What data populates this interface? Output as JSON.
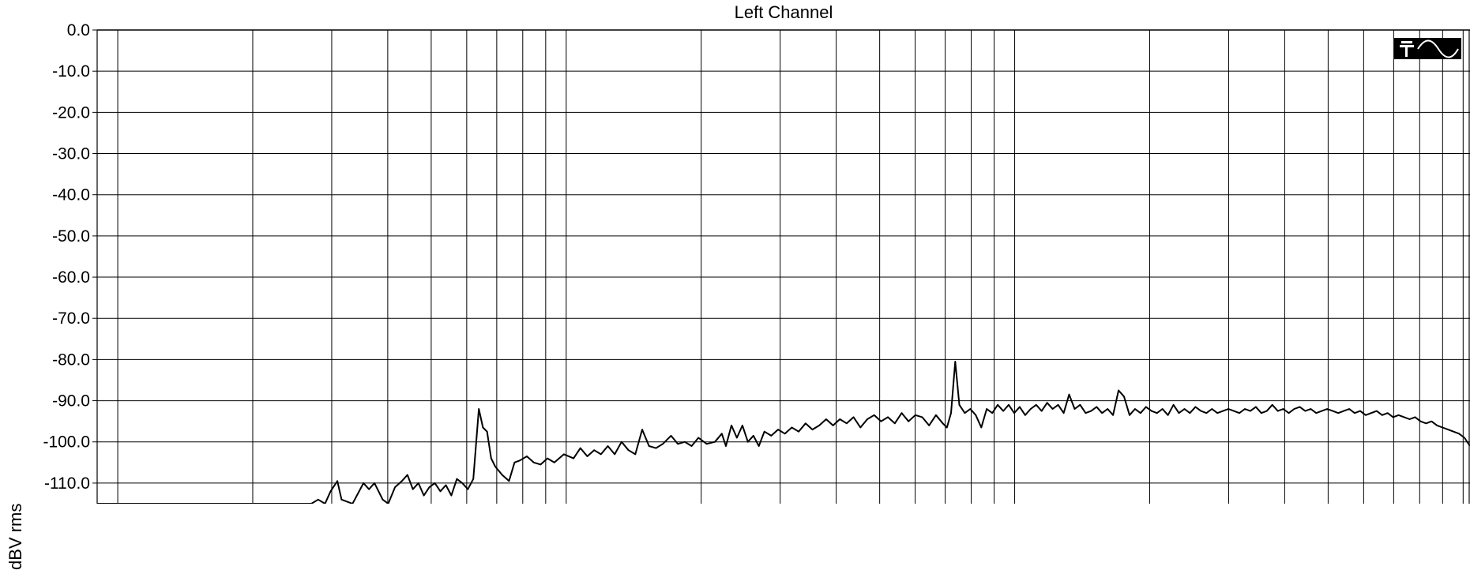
{
  "chart_data": {
    "type": "line",
    "title": "Left Channel",
    "xlabel": "",
    "ylabel": "dBV rms",
    "ylim": [
      -115,
      0
    ],
    "x_scale": "log",
    "grid": true,
    "legend": "none",
    "y_ticks": [
      "0.0",
      "-10.0",
      "-20.0",
      "-30.0",
      "-40.0",
      "-50.0",
      "-60.0",
      "-70.0",
      "-80.0",
      "-90.0",
      "-100.0",
      "-110.0"
    ],
    "series": [
      {
        "color": "#000000",
        "points": [
          [
            0.0,
            -115.0
          ],
          [
            0.04,
            -115.0
          ],
          [
            0.08,
            -115.0
          ],
          [
            0.12,
            -115.0
          ],
          [
            0.156,
            -115.0
          ],
          [
            0.161,
            -114.0
          ],
          [
            0.166,
            -115.0
          ],
          [
            0.17,
            -112.0
          ],
          [
            0.175,
            -109.5
          ],
          [
            0.178,
            -114.0
          ],
          [
            0.186,
            -115.0
          ],
          [
            0.194,
            -110.0
          ],
          [
            0.198,
            -111.5
          ],
          [
            0.202,
            -110.0
          ],
          [
            0.208,
            -114.0
          ],
          [
            0.212,
            -115.0
          ],
          [
            0.217,
            -111.0
          ],
          [
            0.222,
            -109.5
          ],
          [
            0.226,
            -108.0
          ],
          [
            0.23,
            -111.5
          ],
          [
            0.234,
            -110.0
          ],
          [
            0.238,
            -113.0
          ],
          [
            0.242,
            -111.0
          ],
          [
            0.246,
            -110.0
          ],
          [
            0.25,
            -112.0
          ],
          [
            0.254,
            -110.5
          ],
          [
            0.258,
            -113.0
          ],
          [
            0.262,
            -109.0
          ],
          [
            0.266,
            -110.0
          ],
          [
            0.27,
            -111.5
          ],
          [
            0.274,
            -109.0
          ],
          [
            0.278,
            -92.0
          ],
          [
            0.281,
            -96.5
          ],
          [
            0.284,
            -97.5
          ],
          [
            0.287,
            -104.0
          ],
          [
            0.29,
            -106.0
          ],
          [
            0.295,
            -108.0
          ],
          [
            0.3,
            -109.5
          ],
          [
            0.304,
            -105.0
          ],
          [
            0.308,
            -104.5
          ],
          [
            0.313,
            -103.5
          ],
          [
            0.318,
            -105.0
          ],
          [
            0.323,
            -105.5
          ],
          [
            0.328,
            -104.0
          ],
          [
            0.333,
            -105.0
          ],
          [
            0.34,
            -103.0
          ],
          [
            0.347,
            -104.0
          ],
          [
            0.352,
            -101.5
          ],
          [
            0.357,
            -103.5
          ],
          [
            0.362,
            -102.0
          ],
          [
            0.367,
            -103.0
          ],
          [
            0.372,
            -101.0
          ],
          [
            0.377,
            -103.0
          ],
          [
            0.382,
            -100.0
          ],
          [
            0.387,
            -102.0
          ],
          [
            0.392,
            -103.0
          ],
          [
            0.397,
            -97.0
          ],
          [
            0.402,
            -101.0
          ],
          [
            0.407,
            -101.5
          ],
          [
            0.412,
            -100.5
          ],
          [
            0.418,
            -98.5
          ],
          [
            0.423,
            -100.5
          ],
          [
            0.428,
            -100.0
          ],
          [
            0.433,
            -101.0
          ],
          [
            0.438,
            -99.0
          ],
          [
            0.444,
            -100.5
          ],
          [
            0.45,
            -100.0
          ],
          [
            0.455,
            -98.0
          ],
          [
            0.458,
            -101.0
          ],
          [
            0.462,
            -96.0
          ],
          [
            0.466,
            -99.0
          ],
          [
            0.47,
            -96.0
          ],
          [
            0.474,
            -100.0
          ],
          [
            0.478,
            -98.5
          ],
          [
            0.482,
            -101.0
          ],
          [
            0.486,
            -97.5
          ],
          [
            0.491,
            -98.5
          ],
          [
            0.496,
            -97.0
          ],
          [
            0.501,
            -98.0
          ],
          [
            0.506,
            -96.5
          ],
          [
            0.511,
            -97.5
          ],
          [
            0.516,
            -95.5
          ],
          [
            0.521,
            -97.0
          ],
          [
            0.526,
            -96.0
          ],
          [
            0.531,
            -94.5
          ],
          [
            0.536,
            -96.0
          ],
          [
            0.541,
            -94.5
          ],
          [
            0.546,
            -95.5
          ],
          [
            0.551,
            -94.0
          ],
          [
            0.556,
            -96.5
          ],
          [
            0.561,
            -94.5
          ],
          [
            0.566,
            -93.5
          ],
          [
            0.571,
            -95.0
          ],
          [
            0.576,
            -94.0
          ],
          [
            0.581,
            -95.5
          ],
          [
            0.586,
            -93.0
          ],
          [
            0.591,
            -95.0
          ],
          [
            0.596,
            -93.5
          ],
          [
            0.601,
            -94.0
          ],
          [
            0.606,
            -96.0
          ],
          [
            0.611,
            -93.5
          ],
          [
            0.616,
            -95.5
          ],
          [
            0.619,
            -96.5
          ],
          [
            0.622,
            -93.0
          ],
          [
            0.625,
            -80.5
          ],
          [
            0.628,
            -91.0
          ],
          [
            0.632,
            -93.0
          ],
          [
            0.636,
            -92.0
          ],
          [
            0.64,
            -93.5
          ],
          [
            0.644,
            -96.5
          ],
          [
            0.648,
            -92.0
          ],
          [
            0.652,
            -93.0
          ],
          [
            0.656,
            -91.0
          ],
          [
            0.66,
            -92.5
          ],
          [
            0.664,
            -91.0
          ],
          [
            0.668,
            -93.0
          ],
          [
            0.672,
            -91.5
          ],
          [
            0.676,
            -93.5
          ],
          [
            0.68,
            -92.0
          ],
          [
            0.684,
            -91.0
          ],
          [
            0.688,
            -92.5
          ],
          [
            0.692,
            -90.5
          ],
          [
            0.696,
            -92.0
          ],
          [
            0.7,
            -91.0
          ],
          [
            0.704,
            -93.0
          ],
          [
            0.708,
            -88.5
          ],
          [
            0.712,
            -92.0
          ],
          [
            0.716,
            -91.0
          ],
          [
            0.72,
            -93.0
          ],
          [
            0.724,
            -92.5
          ],
          [
            0.728,
            -91.5
          ],
          [
            0.732,
            -93.0
          ],
          [
            0.736,
            -92.0
          ],
          [
            0.74,
            -93.5
          ],
          [
            0.744,
            -87.5
          ],
          [
            0.748,
            -89.0
          ],
          [
            0.752,
            -93.5
          ],
          [
            0.756,
            -92.0
          ],
          [
            0.76,
            -93.0
          ],
          [
            0.764,
            -91.5
          ],
          [
            0.768,
            -92.5
          ],
          [
            0.772,
            -93.0
          ],
          [
            0.776,
            -92.0
          ],
          [
            0.78,
            -93.5
          ],
          [
            0.784,
            -91.0
          ],
          [
            0.788,
            -93.0
          ],
          [
            0.792,
            -92.0
          ],
          [
            0.796,
            -93.0
          ],
          [
            0.8,
            -91.5
          ],
          [
            0.804,
            -92.5
          ],
          [
            0.808,
            -93.0
          ],
          [
            0.812,
            -92.0
          ],
          [
            0.816,
            -93.0
          ],
          [
            0.82,
            -92.5
          ],
          [
            0.824,
            -92.0
          ],
          [
            0.828,
            -92.5
          ],
          [
            0.832,
            -93.0
          ],
          [
            0.836,
            -92.0
          ],
          [
            0.84,
            -92.5
          ],
          [
            0.844,
            -91.5
          ],
          [
            0.848,
            -93.0
          ],
          [
            0.852,
            -92.5
          ],
          [
            0.856,
            -91.0
          ],
          [
            0.86,
            -92.5
          ],
          [
            0.864,
            -92.0
          ],
          [
            0.868,
            -93.0
          ],
          [
            0.872,
            -92.0
          ],
          [
            0.876,
            -91.5
          ],
          [
            0.88,
            -92.5
          ],
          [
            0.884,
            -92.0
          ],
          [
            0.888,
            -93.0
          ],
          [
            0.892,
            -92.5
          ],
          [
            0.896,
            -92.0
          ],
          [
            0.9,
            -92.5
          ],
          [
            0.904,
            -93.0
          ],
          [
            0.908,
            -92.5
          ],
          [
            0.912,
            -92.0
          ],
          [
            0.916,
            -93.0
          ],
          [
            0.92,
            -92.5
          ],
          [
            0.924,
            -93.5
          ],
          [
            0.928,
            -93.0
          ],
          [
            0.932,
            -92.5
          ],
          [
            0.936,
            -93.5
          ],
          [
            0.94,
            -93.0
          ],
          [
            0.944,
            -94.0
          ],
          [
            0.948,
            -93.5
          ],
          [
            0.952,
            -94.0
          ],
          [
            0.956,
            -94.5
          ],
          [
            0.96,
            -94.0
          ],
          [
            0.964,
            -95.0
          ],
          [
            0.968,
            -95.5
          ],
          [
            0.972,
            -95.0
          ],
          [
            0.976,
            -96.0
          ],
          [
            0.98,
            -96.5
          ],
          [
            0.984,
            -97.0
          ],
          [
            0.988,
            -97.5
          ],
          [
            0.992,
            -98.0
          ],
          [
            0.996,
            -99.0
          ],
          [
            1.0,
            -101.0
          ]
        ]
      }
    ]
  },
  "badge": {
    "icon": "generator-waveform-icon"
  }
}
